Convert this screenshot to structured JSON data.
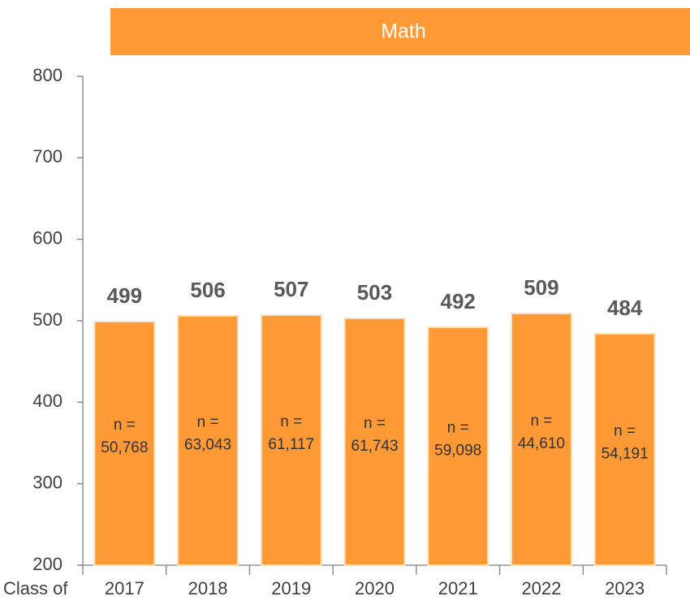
{
  "chart_data": {
    "type": "bar",
    "title": "Math",
    "x_label": "Class of",
    "categories": [
      "2017",
      "2018",
      "2019",
      "2020",
      "2021",
      "2022",
      "2023"
    ],
    "values": [
      499,
      506,
      507,
      503,
      492,
      509,
      484
    ],
    "annotations": [
      [
        "n =",
        "50,768"
      ],
      [
        "n =",
        "63,043"
      ],
      [
        "n =",
        "61,117"
      ],
      [
        "n =",
        "61,743"
      ],
      [
        "n =",
        "59,098"
      ],
      [
        "n =",
        "44,610"
      ],
      [
        "n =",
        "54,191"
      ]
    ],
    "color": "#fd9a35",
    "ylim": [
      200,
      800
    ],
    "yticks": [
      200,
      300,
      400,
      500,
      600,
      700,
      800
    ],
    "grid": false
  }
}
